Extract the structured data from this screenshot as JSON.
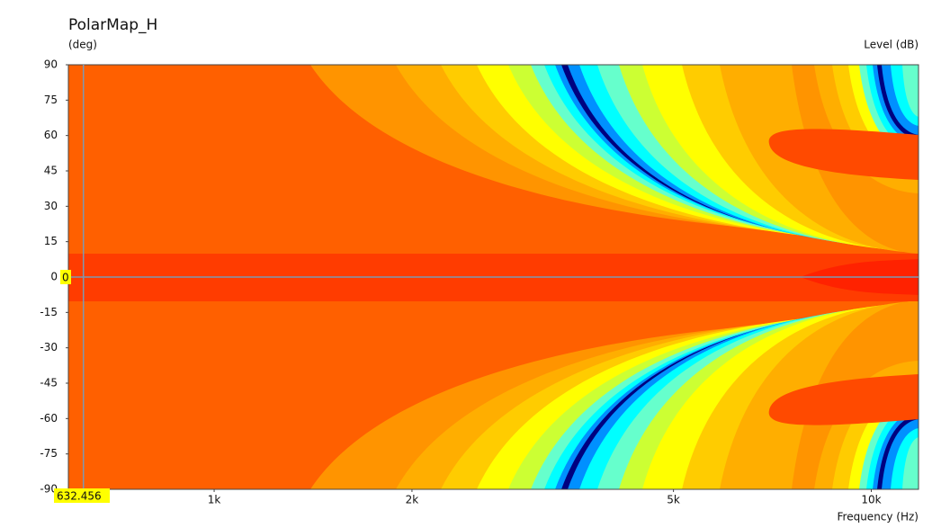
{
  "chart_data": {
    "type": "polar-map",
    "title": "PolarMap_H",
    "ylabel": "(deg)",
    "zlabel": "Level (dB)",
    "xlabel": "Frequency (Hz)",
    "xscale": "log",
    "xlim": [
      600,
      11800
    ],
    "xticks": [
      {
        "value": 1000,
        "label": "1k"
      },
      {
        "value": 2000,
        "label": "2k"
      },
      {
        "value": 5000,
        "label": "5k"
      },
      {
        "value": 10000,
        "label": "10k"
      }
    ],
    "ylim": [
      -90,
      90
    ],
    "yticks": [
      90,
      75,
      60,
      45,
      30,
      15,
      0,
      -15,
      -30,
      -45,
      -60,
      -75,
      -90
    ],
    "cursor": {
      "x": 632.456,
      "y": 0
    }
  }
}
